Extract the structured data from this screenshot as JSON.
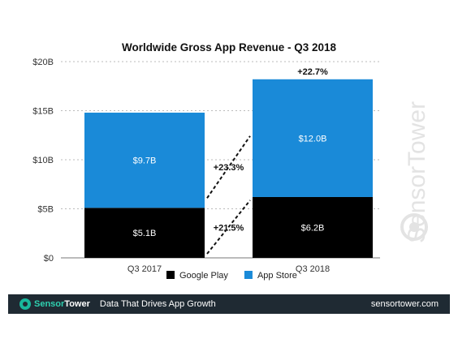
{
  "chart_data": {
    "type": "bar",
    "stacked": true,
    "title": "Worldwide Gross App Revenue - Q3 2018",
    "categories": [
      "Q3 2017",
      "Q3 2018"
    ],
    "series": [
      {
        "name": "Google Play",
        "values": [
          5.1,
          6.2
        ],
        "labels": [
          "$5.1B",
          "$6.2B"
        ],
        "color": "#000000"
      },
      {
        "name": "App Store",
        "values": [
          9.7,
          12.0
        ],
        "labels": [
          "$9.7B",
          "$12.0B"
        ],
        "color": "#1a8ad8"
      }
    ],
    "ylim": [
      0,
      20
    ],
    "yticks": [
      0,
      5,
      10,
      15,
      20
    ],
    "ytick_labels": [
      "$0",
      "$5B",
      "$10B",
      "$15B",
      "$20B"
    ],
    "grid": true,
    "legend_placement": "bottom-center",
    "annotations": {
      "total_growth": "+22.7%",
      "app_store_growth": "+23.3%",
      "google_play_growth": "+21.5%"
    }
  },
  "watermark": "SensorTower",
  "footer": {
    "brand_part1": "Sensor",
    "brand_part2": "Tower",
    "tagline": "Data That Drives App Growth",
    "url": "sensortower.com"
  },
  "colors": {
    "google_play": "#000000",
    "app_store": "#1a8ad8",
    "footer_bg": "#1f2a33",
    "brand_accent": "#19b89c"
  }
}
